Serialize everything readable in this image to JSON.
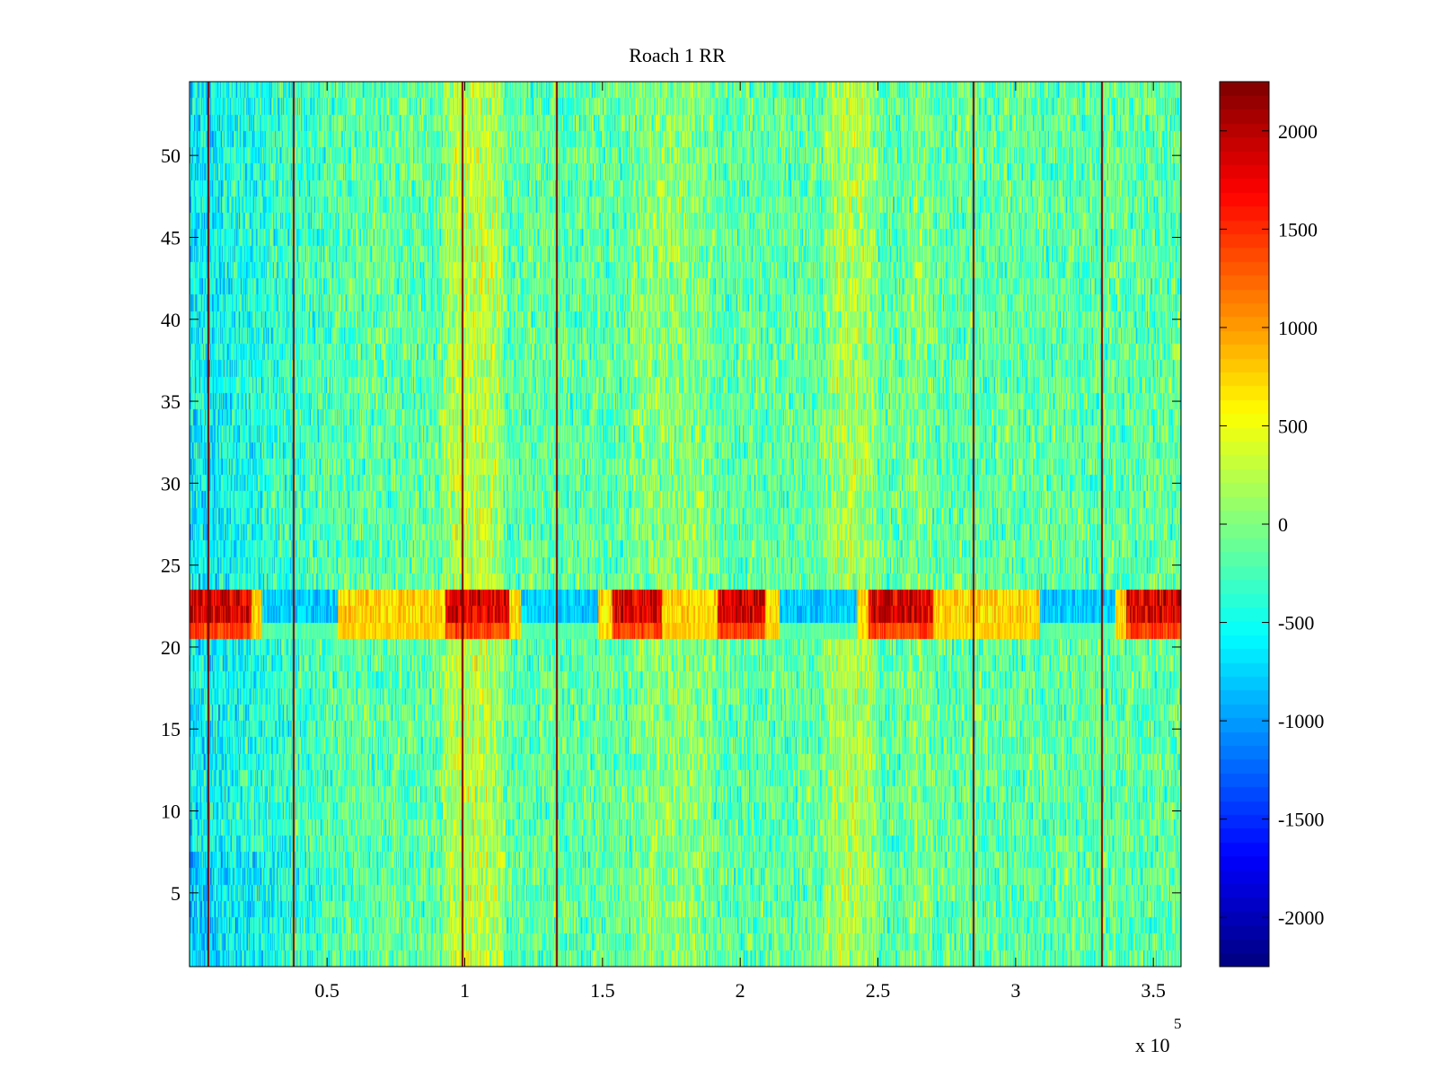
{
  "chart_data": {
    "type": "heatmap",
    "title": "Roach 1 RR",
    "xlabel": "",
    "ylabel": "",
    "x_exponent_label": "x 10",
    "x_exponent": "5",
    "xlim": [
      0.5,
      3600.5
    ],
    "x_scale": 100,
    "ylim": [
      0.5,
      54.5
    ],
    "x_ticks": [
      500,
      1000,
      1500,
      2000,
      2500,
      3000,
      3500
    ],
    "x_tick_labels": [
      "0.5",
      "1",
      "1.5",
      "2",
      "2.5",
      "3",
      "3.5"
    ],
    "y_ticks": [
      5,
      10,
      15,
      20,
      25,
      30,
      35,
      40,
      45,
      50
    ],
    "y_tick_labels": [
      "5",
      "10",
      "15",
      "20",
      "25",
      "30",
      "35",
      "40",
      "45",
      "50"
    ],
    "rows": 54,
    "columns": 3600,
    "color_limits": [
      -2250,
      2250
    ],
    "colormap": "jet",
    "colorbar": {
      "ticks": [
        -2000,
        -1500,
        -1000,
        -500,
        0,
        500,
        1000,
        1500,
        2000
      ],
      "tick_labels": [
        "-2000",
        "-1500",
        "-1000",
        "-500",
        "0",
        "500",
        "1000",
        "1500",
        "2000"
      ]
    },
    "description_features": {
      "background_level": -150,
      "warm_bands_x": [
        [
          920,
          1140,
          450
        ],
        [
          1600,
          1900,
          200
        ],
        [
          2300,
          2500,
          350
        ],
        [
          2600,
          2700,
          150
        ]
      ],
      "cold_band_x": [
        [
          0,
          600,
          -450
        ]
      ],
      "vertical_lines_x": [
        65,
        375,
        990,
        1330,
        2845,
        3310
      ],
      "anomaly_rows": [
        21,
        22,
        23
      ]
    }
  }
}
